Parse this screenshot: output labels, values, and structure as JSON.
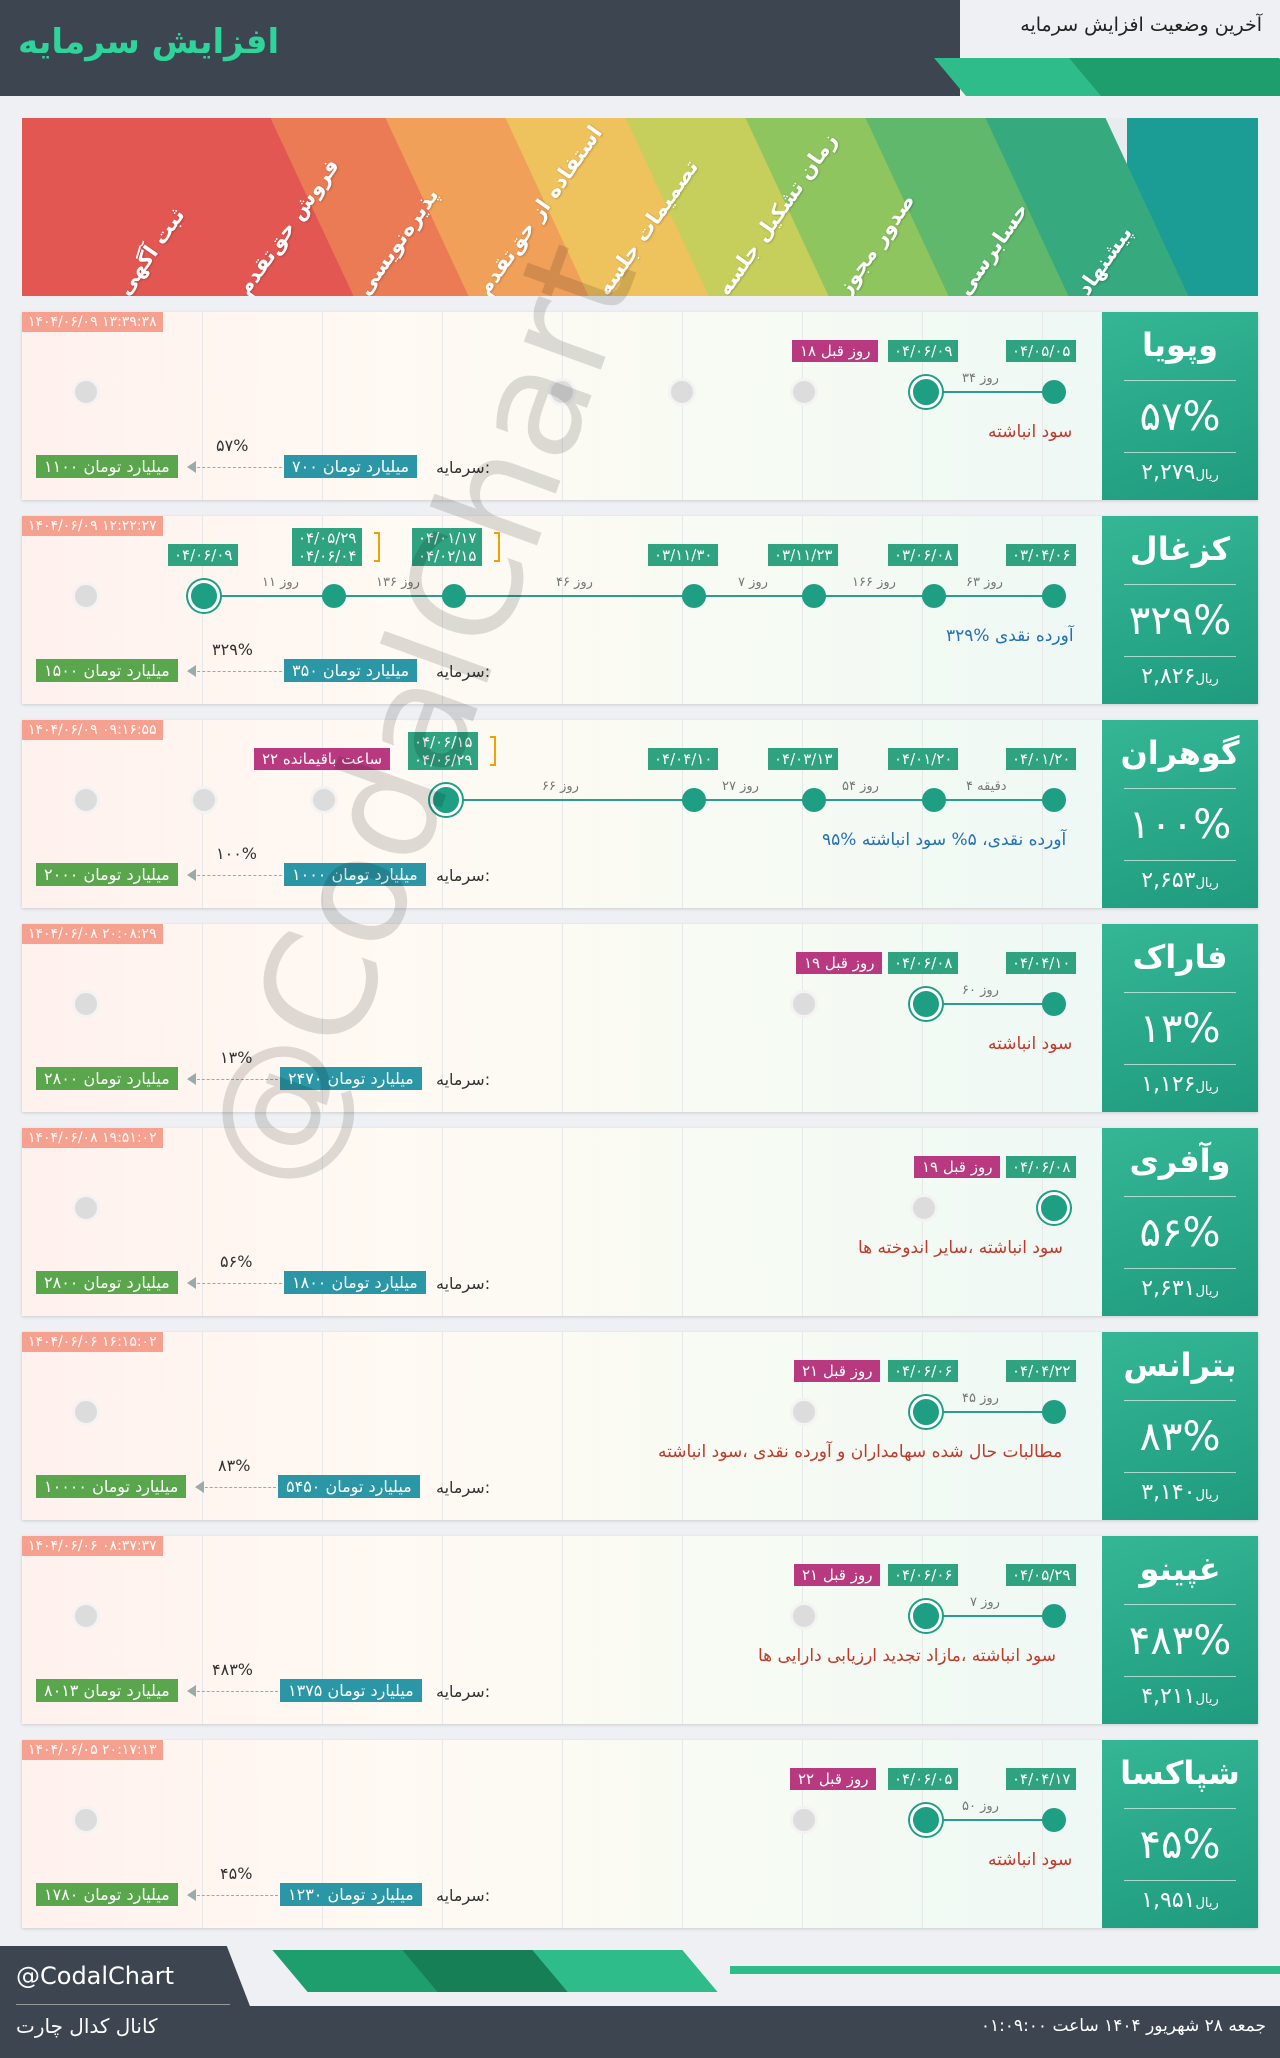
{
  "header": {
    "title": "افزایش سرمایه",
    "subtitle": "آخرین وضعیت افزایش سرمایه"
  },
  "stages": [
    "پیشنهاد",
    "حسابرسی",
    "صدور مجوز",
    "زمان تشکیل جلسه",
    "تصمیمات جلسه",
    "استفاده از حق‌تقدم",
    "پذیره‌نویسی",
    "فروش حق‌تقدم",
    "ثبت آگهی"
  ],
  "stage_colors": [
    "#1b9c94",
    "#36a97e",
    "#5fb86c",
    "#8fc55f",
    "#c7cf5c",
    "#eec25d",
    "#f0a059",
    "#ea7b55",
    "#e35752"
  ],
  "currency_label": "ریال",
  "capital_label": "سرمایه:",
  "rows": [
    {
      "symbol": "وپویا",
      "percent": "۵۷%",
      "price": "۲,۲۷۹",
      "timestamp": "۱۴۰۴/۰۶/۰۹ ۱۳:۳۹:۳۸",
      "dates": [
        "۰۴/۰۵/۰۵",
        "۰۴/۰۶/۰۹"
      ],
      "gaps": [
        "۳۴ روز"
      ],
      "ago": "۱۸ روز قبل",
      "note": "سود انباشته",
      "note_color": "red",
      "capital_old": "۷۰۰ میلیارد تومان",
      "capital_new": "۱۱۰۰ میلیارد تومان",
      "capital_pct": "۵۷%"
    },
    {
      "symbol": "کزغال",
      "percent": "۳۲۹%",
      "price": "۲,۸۲۶",
      "timestamp": "۱۴۰۴/۰۶/۰۹ ۱۲:۲۲:۲۷",
      "dates": [
        "۰۳/۰۴/۰۶",
        "۰۳/۰۶/۰۸",
        "۰۳/۱۱/۲۳",
        "۰۳/۱۱/۳۰",
        "۰۴/۰۱/۱۷",
        "۰۴/۰۲/۱۵",
        "۰۴/۰۵/۲۹",
        "۰۴/۰۶/۰۴",
        "۰۴/۰۶/۰۹"
      ],
      "gaps": [
        "۶۳ روز",
        "۱۶۶ روز",
        "۷ روز",
        "۴۶ روز",
        "۱۳۶ روز",
        "۱۱ روز"
      ],
      "note": "۳۲۹% آورده نقدی",
      "note_color": "blue",
      "capital_old": "۳۵۰ میلیارد تومان",
      "capital_new": "۱۵۰۰ میلیارد تومان",
      "capital_pct": "۳۲۹%"
    },
    {
      "symbol": "گوهران",
      "percent": "۱۰۰%",
      "price": "۲,۶۵۳",
      "timestamp": "۱۴۰۴/۰۶/۰۹ ۰۹:۱۶:۵۵",
      "dates": [
        "۰۴/۰۱/۲۰",
        "۰۴/۰۱/۲۰",
        "۰۴/۰۳/۱۳",
        "۰۴/۰۴/۱۰",
        "۰۴/۰۶/۱۵",
        "۰۴/۰۶/۲۹"
      ],
      "gaps": [
        "۴ دقیقه",
        "۵۴ روز",
        "۲۷ روز",
        "۶۶ روز"
      ],
      "ago": "۲۲ ساعت باقیمانده",
      "note": "۹۵% آورده نقدی، ۵% سود انباشته",
      "note_color": "blue",
      "capital_old": "۱۰۰۰ میلیارد تومان",
      "capital_new": "۲۰۰۰ میلیارد تومان",
      "capital_pct": "۱۰۰%"
    },
    {
      "symbol": "فاراک",
      "percent": "۱۳%",
      "price": "۱,۱۲۶",
      "timestamp": "۱۴۰۴/۰۶/۰۸ ۲۰:۰۸:۲۹",
      "dates": [
        "۰۴/۰۴/۱۰",
        "۰۴/۰۶/۰۸"
      ],
      "gaps": [
        "۶۰ روز"
      ],
      "ago": "۱۹ روز قبل",
      "note": "سود انباشته",
      "note_color": "red",
      "capital_old": "۲۴۷۰ میلیارد تومان",
      "capital_new": "۲۸۰۰ میلیارد تومان",
      "capital_pct": "۱۳%"
    },
    {
      "symbol": "وآفری",
      "percent": "۵۶%",
      "price": "۲,۶۳۱",
      "timestamp": "۱۴۰۴/۰۶/۰۸ ۱۹:۵۱:۰۲",
      "dates": [
        "۰۴/۰۶/۰۸"
      ],
      "gaps": [],
      "ago": "۱۹ روز قبل",
      "note": "سود انباشته ،سایر اندوخته ها",
      "note_color": "red",
      "capital_old": "۱۸۰۰ میلیارد تومان",
      "capital_new": "۲۸۰۰ میلیارد تومان",
      "capital_pct": "۵۶%"
    },
    {
      "symbol": "بترانس",
      "percent": "۸۳%",
      "price": "۳,۱۴۰",
      "timestamp": "۱۴۰۴/۰۶/۰۶ ۱۶:۱۵:۰۲",
      "dates": [
        "۰۴/۰۴/۲۲",
        "۰۴/۰۶/۰۶"
      ],
      "gaps": [
        "۴۵ روز"
      ],
      "ago": "۲۱ روز قبل",
      "note": "مطالبات حال شده سهامداران و آورده نقدی ،سود انباشته",
      "note_color": "red",
      "capital_old": "۵۴۵۰ میلیارد تومان",
      "capital_new": "۱۰۰۰۰ میلیارد تومان",
      "capital_pct": "۸۳%"
    },
    {
      "symbol": "غپینو",
      "percent": "۴۸۳%",
      "price": "۴,۲۱۱",
      "timestamp": "۱۴۰۴/۰۶/۰۶ ۰۸:۳۷:۳۷",
      "dates": [
        "۰۴/۰۵/۲۹",
        "۰۴/۰۶/۰۶"
      ],
      "gaps": [
        "۷ روز"
      ],
      "ago": "۲۱ روز قبل",
      "note": "سود انباشته ،مازاد تجدید ارزیابی دارایی ها",
      "note_color": "red",
      "capital_old": "۱۳۷۵ میلیارد تومان",
      "capital_new": "۸۰۱۳ میلیارد تومان",
      "capital_pct": "۴۸۳%"
    },
    {
      "symbol": "شپاکسا",
      "percent": "۴۵%",
      "price": "۱,۹۵۱",
      "timestamp": "۱۴۰۴/۰۶/۰۵ ۲۰:۱۷:۱۳",
      "dates": [
        "۰۴/۰۴/۱۷",
        "۰۴/۰۶/۰۵"
      ],
      "gaps": [
        "۵۰ روز"
      ],
      "ago": "۲۲ روز قبل",
      "note": "سود انباشته",
      "note_color": "red",
      "capital_old": "۱۲۳۰ میلیارد تومان",
      "capital_new": "۱۷۸۰ میلیارد تومان",
      "capital_pct": "۴۵%"
    }
  ],
  "footer": {
    "handle": "@CodalChart",
    "channel": "کانال کدال چارت",
    "datetime": "جمعه ۲۸ شهریور ۱۴۰۴ ساعت ۰۱:۰۹:۰۰"
  },
  "watermark": "@CodalChart"
}
